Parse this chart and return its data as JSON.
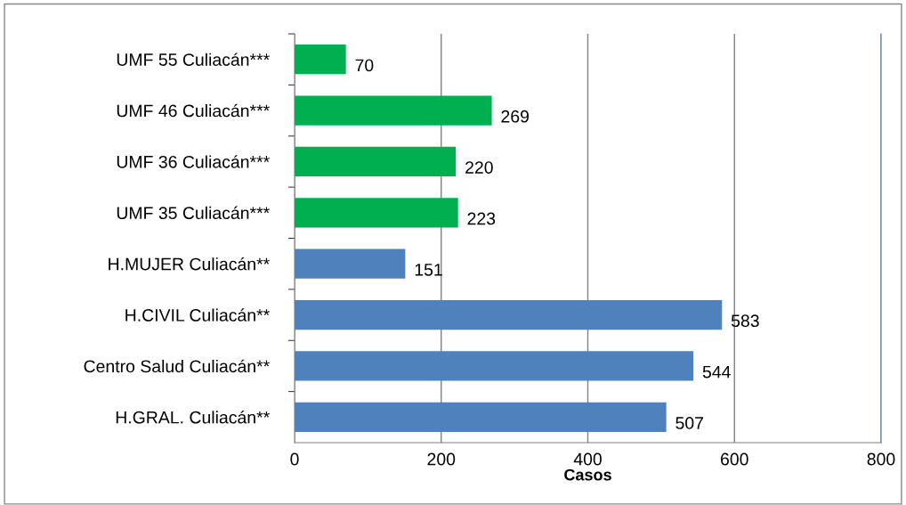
{
  "chart_data": {
    "type": "bar",
    "orientation": "horizontal",
    "xlabel": "Casos",
    "categories": [
      "UMF 55 Culiacán***",
      "UMF 46 Culiacán***",
      "UMF 36 Culiacán***",
      "UMF 35 Culiacán***",
      "H.MUJER Culiacán**",
      "H.CIVIL Culiacán**",
      "Centro Salud Culiacán**",
      "H.GRAL. Culiacán**"
    ],
    "values": [
      70,
      269,
      220,
      223,
      151,
      583,
      544,
      507
    ],
    "colors": [
      "#00b050",
      "#00b050",
      "#00b050",
      "#00b050",
      "#4f81bd",
      "#4f81bd",
      "#4f81bd",
      "#4f81bd"
    ],
    "xlim": [
      0,
      800
    ],
    "xticks": [
      0,
      200,
      400,
      600,
      800
    ],
    "grid": "x",
    "data_labels": true
  }
}
